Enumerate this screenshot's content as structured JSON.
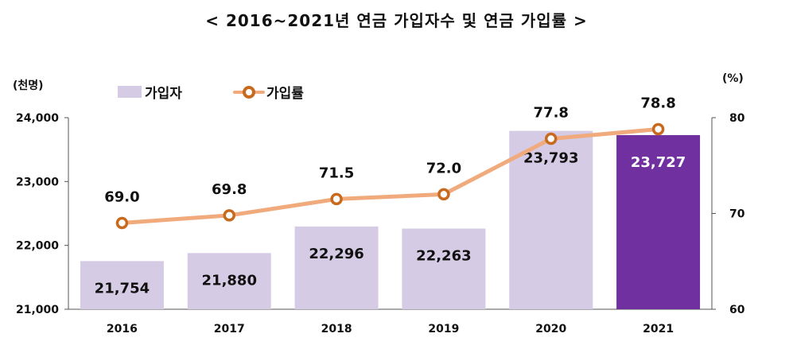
{
  "title": "< 2016~2021년 연금 가입자수 및 연금 가입률 >",
  "left_unit": "(천명)",
  "right_unit": "(%)",
  "legend": {
    "bar_label": "가입자",
    "line_label": "가입률"
  },
  "colors": {
    "bar": "#d5cbe5",
    "bar_highlight": "#7030a0",
    "line": "#f0aa7c",
    "marker": "#c86a1e",
    "axis": "#555555"
  },
  "chart_data": {
    "type": "bar+line",
    "categories": [
      "2016",
      "2017",
      "2018",
      "2019",
      "2020",
      "2021"
    ],
    "series": [
      {
        "name": "가입자",
        "type": "bar",
        "axis": "left",
        "values": [
          21754,
          21880,
          22296,
          22263,
          23793,
          23727
        ],
        "labels": [
          "21,754",
          "21,880",
          "22,296",
          "22,263",
          "23,793",
          "23,727"
        ],
        "highlight_index": 5
      },
      {
        "name": "가입률",
        "type": "line",
        "axis": "right",
        "values": [
          69.0,
          69.8,
          71.5,
          72.0,
          77.8,
          78.8
        ],
        "labels": [
          "69.0",
          "69.8",
          "71.5",
          "72.0",
          "77.8",
          "78.8"
        ]
      }
    ],
    "left_axis": {
      "min": 21000,
      "max": 24000,
      "ticks": [
        21000,
        22000,
        23000,
        24000
      ],
      "tick_labels": [
        "21,000",
        "22,000",
        "23,000",
        "24,000"
      ]
    },
    "right_axis": {
      "min": 60,
      "max": 80,
      "ticks": [
        60,
        70,
        80
      ],
      "tick_labels": [
        "60",
        "70",
        "80"
      ]
    },
    "grid": false
  }
}
